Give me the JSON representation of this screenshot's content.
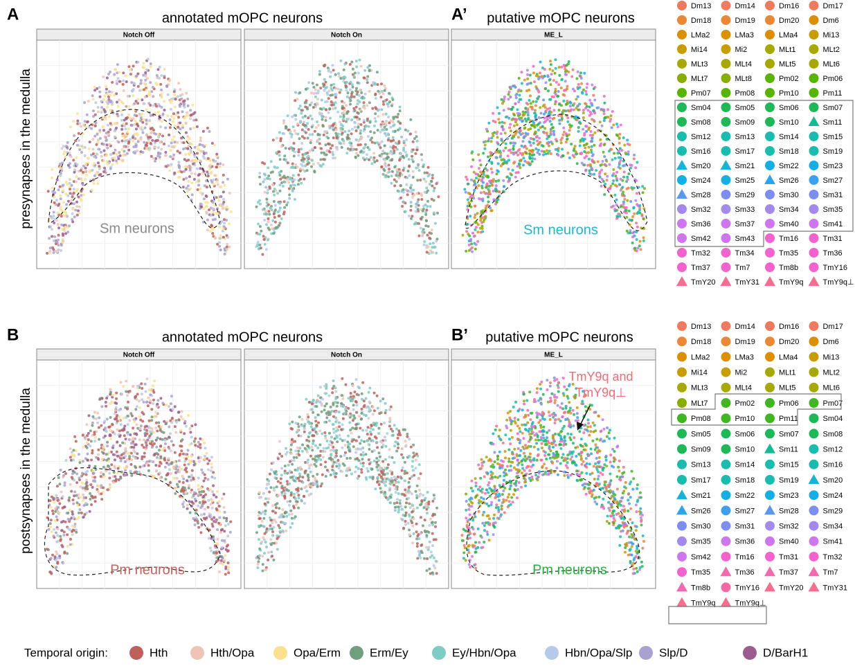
{
  "panels": [
    {
      "label": "A",
      "title": "annotated mOPC neurons",
      "y_label": "presynapses in the medulla",
      "facets": [
        "Notch Off",
        "Notch On"
      ],
      "annotation": "Sm neurons",
      "annotation_color": "#8a8a8a"
    },
    {
      "label": "A’",
      "title": "putative mOPC neurons",
      "facets": [
        "ME_L"
      ],
      "annotation": "Sm neurons",
      "annotation_color": "#1fb5d8"
    },
    {
      "label": "B",
      "title": "annotated mOPC neurons",
      "y_label": "postsynapses in the medulla",
      "facets": [
        "Notch Off",
        "Notch On"
      ],
      "annotation": "Pm neurons",
      "annotation_color": "#c9605a"
    },
    {
      "label": "B’",
      "title": "putative mOPC neurons",
      "facets": [
        "ME_L"
      ],
      "annotation": "Pm neurons",
      "annotation_color": "#22b43a",
      "callout": [
        "TmY9q and",
        "TmY9q⊥"
      ],
      "callout_color": "#f26b77"
    }
  ],
  "legend_a": {
    "groups": [
      {
        "color": "#ef7b5f",
        "shape": "circle",
        "items": [
          "Dm13",
          "Dm14",
          "Dm16",
          "Dm17"
        ]
      },
      {
        "color": "#ec8733",
        "shape": "circle",
        "items": [
          "Dm18",
          "Dm19",
          "Dm20"
        ]
      },
      {
        "color": "#dc9000",
        "shape": "circle",
        "items": [
          "Dm6",
          "LMa2",
          "LMa3",
          "LMa4"
        ]
      },
      {
        "color": "#c89d00",
        "shape": "circle",
        "items": [
          "Mi13",
          "Mi14",
          "Mi2"
        ]
      },
      {
        "color": "#a7a800",
        "shape": "circle",
        "items": [
          "MLt1",
          "MLt2",
          "MLt3",
          "MLt4",
          "MLt5",
          "MLt6"
        ]
      },
      {
        "color": "#86ad00",
        "shape": "circle",
        "items": [
          "MLt7",
          "MLt8"
        ]
      },
      {
        "color": "#56b500",
        "shape": "circle",
        "items": [
          "Pm02",
          "Pm06",
          "Pm07",
          "Pm08",
          "Pm10",
          "Pm11"
        ]
      },
      {
        "color": "#1db957",
        "shape": "circle",
        "items": [
          "Sm04",
          "Sm05",
          "Sm06",
          "Sm07",
          "Sm08",
          "Sm09",
          "Sm10"
        ]
      },
      {
        "color": "#12bb94",
        "shape": "triangle",
        "items": [
          "Sm11"
        ]
      },
      {
        "color": "#18bdb0",
        "shape": "circle",
        "items": [
          "Sm12",
          "Sm13",
          "Sm14",
          "Sm15",
          "Sm16",
          "Sm17",
          "Sm18",
          "Sm19"
        ]
      },
      {
        "color": "#12b4d8",
        "shape": "triangle",
        "items": [
          "Sm20",
          "Sm21"
        ]
      },
      {
        "color": "#12b0e6",
        "shape": "circle",
        "items": [
          "Sm22",
          "Sm23",
          "Sm24",
          "Sm25"
        ]
      },
      {
        "color": "#2aa6ee",
        "shape": "triangle",
        "items": [
          "Sm26"
        ]
      },
      {
        "color": "#3d9ff0",
        "shape": "circle",
        "items": [
          "Sm27"
        ]
      },
      {
        "color": "#5a97f0",
        "shape": "triangle",
        "items": [
          "Sm28"
        ]
      },
      {
        "color": "#7c8ff0",
        "shape": "circle",
        "items": [
          "Sm29",
          "Sm30",
          "Sm31"
        ]
      },
      {
        "color": "#a18aec",
        "shape": "circle",
        "items": [
          "Sm32",
          "Sm33",
          "Sm34",
          "Sm35"
        ]
      },
      {
        "color": "#cf76ee",
        "shape": "circle",
        "items": [
          "Sm36",
          "Sm37",
          "Sm40",
          "Sm41",
          "Sm42",
          "Sm43"
        ]
      },
      {
        "color": "#f462cf",
        "shape": "circle",
        "items": [
          "Tm16",
          "Tm31",
          "Tm32",
          "Tm34",
          "Tm35",
          "Tm36",
          "Tm37",
          "Tm7",
          "Tm8b",
          "TmY16"
        ]
      },
      {
        "color": "#f86c8c",
        "shape": "triangle",
        "items": [
          "TmY20",
          "TmY31",
          "TmY9q",
          "TmY9q⊥"
        ]
      }
    ]
  },
  "legend_b": {
    "groups": [
      {
        "color": "#ef7b5f",
        "shape": "circle",
        "items": [
          "Dm13",
          "Dm14",
          "Dm16",
          "Dm17"
        ]
      },
      {
        "color": "#ec8733",
        "shape": "circle",
        "items": [
          "Dm18",
          "Dm19",
          "Dm20"
        ]
      },
      {
        "color": "#dc9000",
        "shape": "circle",
        "items": [
          "Dm6",
          "LMa2",
          "LMa3",
          "LMa4"
        ]
      },
      {
        "color": "#c89d00",
        "shape": "circle",
        "items": [
          "Mi13",
          "Mi14",
          "Mi2"
        ]
      },
      {
        "color": "#a7a800",
        "shape": "circle",
        "items": [
          "MLt1",
          "MLt2",
          "MLt3",
          "MLt4",
          "MLt5",
          "MLt6"
        ]
      },
      {
        "color": "#86ad00",
        "shape": "circle",
        "items": [
          "MLt7"
        ]
      },
      {
        "color": "#3fb720",
        "shape": "circle",
        "items": [
          "Pm02",
          "Pm06",
          "Pm07",
          "Pm08",
          "Pm10",
          "Pm11"
        ]
      },
      {
        "color": "#1db957",
        "shape": "circle",
        "items": [
          "Sm04",
          "Sm05",
          "Sm06",
          "Sm07",
          "Sm08",
          "Sm09",
          "Sm10"
        ]
      },
      {
        "color": "#12bb94",
        "shape": "triangle",
        "items": [
          "Sm11"
        ]
      },
      {
        "color": "#18bdb0",
        "shape": "circle",
        "items": [
          "Sm12",
          "Sm13",
          "Sm14",
          "Sm15",
          "Sm16",
          "Sm17",
          "Sm18",
          "Sm19"
        ]
      },
      {
        "color": "#12b4d8",
        "shape": "triangle",
        "items": [
          "Sm20",
          "Sm21"
        ]
      },
      {
        "color": "#12b0e6",
        "shape": "circle",
        "items": [
          "Sm22",
          "Sm23",
          "Sm24"
        ]
      },
      {
        "color": "#2aa6ee",
        "shape": "triangle",
        "items": [
          "Sm26"
        ]
      },
      {
        "color": "#3d9ff0",
        "shape": "circle",
        "items": [
          "Sm27"
        ]
      },
      {
        "color": "#5a97f0",
        "shape": "triangle",
        "items": [
          "Sm28"
        ]
      },
      {
        "color": "#7c8ff0",
        "shape": "circle",
        "items": [
          "Sm29",
          "Sm30",
          "Sm31"
        ]
      },
      {
        "color": "#a18aec",
        "shape": "circle",
        "items": [
          "Sm32",
          "Sm34",
          "Sm35"
        ]
      },
      {
        "color": "#cf76ee",
        "shape": "circle",
        "items": [
          "Sm36",
          "Sm40",
          "Sm41",
          "Sm42"
        ]
      },
      {
        "color": "#f462cf",
        "shape": "circle",
        "items": [
          "Tm16",
          "Tm31",
          "Tm32",
          "Tm35"
        ]
      },
      {
        "color": "#f468b0",
        "shape": "triangle",
        "items": [
          "Tm36",
          "Tm37",
          "Tm7",
          "Tm8b"
        ]
      },
      {
        "color": "#f668a4",
        "shape": "circle",
        "items": [
          "TmY16"
        ]
      },
      {
        "color": "#f86c8c",
        "shape": "triangle",
        "items": [
          "TmY20",
          "TmY31",
          "TmY9q",
          "TmY9q⊥"
        ]
      }
    ]
  },
  "temporal_origin": {
    "title": "Temporal origin:",
    "items": [
      {
        "name": "Hth",
        "color": "#c0605b"
      },
      {
        "name": "Hth/Opa",
        "color": "#efc3b5"
      },
      {
        "name": "Opa/Erm",
        "color": "#fbe08d"
      },
      {
        "name": "Erm/Ey",
        "color": "#6f9f7c"
      },
      {
        "name": "Ey/Hbn/Opa",
        "color": "#7ecdc5"
      },
      {
        "name": "Hbn/Opa/Slp",
        "color": "#b5c9e8"
      },
      {
        "name": "Slp/D",
        "color": "#a9a1cf"
      },
      {
        "name": "D/BarH1",
        "color": "#9c5d8e"
      }
    ]
  }
}
